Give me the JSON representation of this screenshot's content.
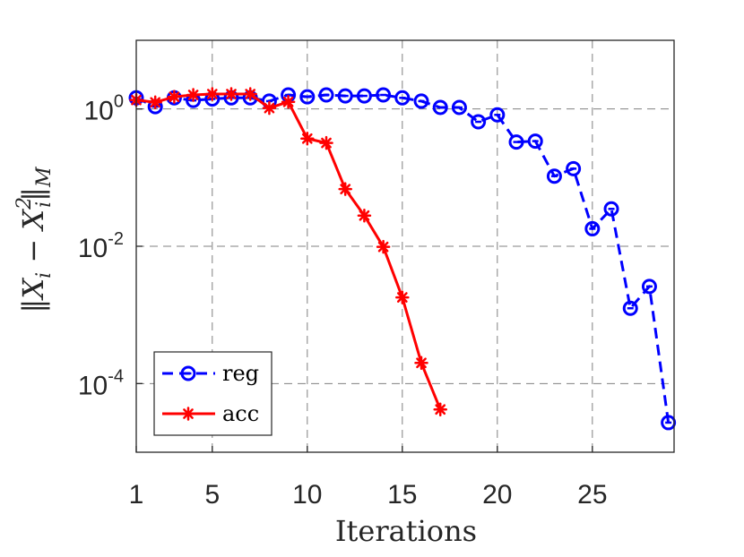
{
  "chart_data": {
    "type": "line",
    "title": "",
    "xlabel": "Iterations",
    "ylabel": "‖X_i − X_i²‖_M",
    "ylabel_parts": {
      "open": "‖X",
      "sub1": "i",
      "minus": " − X",
      "sup2": "2",
      "sub2": "i",
      "close": "‖",
      "subM": "M"
    },
    "xlim": [
      1,
      29.3
    ],
    "ylim": [
      1e-05,
      10
    ],
    "yscale": "log",
    "grid": true,
    "legend_position": "bottom-left",
    "x_ticks": [
      1,
      5,
      10,
      15,
      20,
      25
    ],
    "y_ticks": [
      {
        "value": 1,
        "base": "10",
        "exp": "0"
      },
      {
        "value": 0.01,
        "base": "10",
        "exp": "-2"
      },
      {
        "value": 0.0001,
        "base": "10",
        "exp": "-4"
      }
    ],
    "series": [
      {
        "name": "reg",
        "color": "#0000ff",
        "line_style": "dashed",
        "marker": "circle",
        "x": [
          1,
          2,
          3,
          4,
          5,
          6,
          7,
          8,
          9,
          10,
          11,
          12,
          13,
          14,
          15,
          16,
          17,
          18,
          19,
          20,
          21,
          22,
          23,
          24,
          25,
          26,
          27,
          28,
          29
        ],
        "y": [
          1.45,
          1.08,
          1.45,
          1.33,
          1.4,
          1.45,
          1.45,
          1.3,
          1.6,
          1.5,
          1.6,
          1.55,
          1.55,
          1.6,
          1.45,
          1.3,
          1.05,
          1.05,
          0.65,
          0.82,
          0.33,
          0.34,
          0.105,
          0.135,
          0.018,
          0.035,
          0.00125,
          0.0026,
          2.7e-05
        ]
      },
      {
        "name": "acc",
        "color": "#ff0000",
        "line_style": "solid",
        "marker": "asterisk",
        "x": [
          1,
          2,
          3,
          4,
          5,
          6,
          7,
          8,
          9,
          10,
          11,
          12,
          13,
          14,
          15,
          16,
          17
        ],
        "y": [
          1.35,
          1.25,
          1.5,
          1.6,
          1.65,
          1.65,
          1.65,
          1.03,
          1.27,
          0.37,
          0.32,
          0.068,
          0.028,
          0.0098,
          0.0018,
          0.0002,
          4.2e-05
        ]
      }
    ]
  }
}
